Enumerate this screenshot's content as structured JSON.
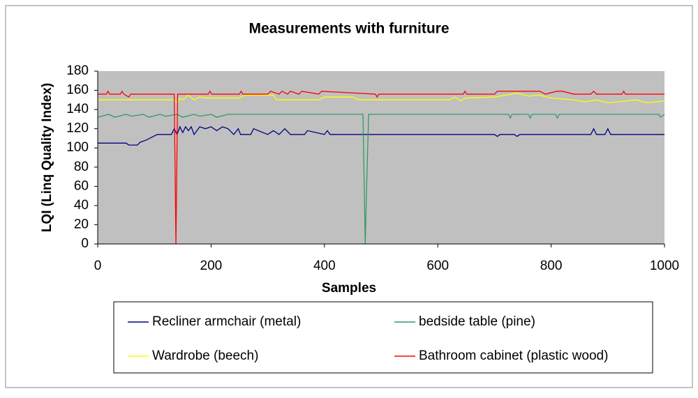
{
  "chart_data": {
    "type": "line",
    "title": "Measurements with furniture",
    "x_label": "Samples",
    "y_label": "LQI (Linq Quality Index)",
    "xlim": [
      0,
      1000
    ],
    "xticks": [
      0,
      200,
      400,
      600,
      800,
      1000
    ],
    "ylim": [
      0,
      180
    ],
    "yticks": [
      0,
      20,
      40,
      60,
      80,
      100,
      120,
      140,
      160,
      180
    ],
    "grid": false,
    "legend": "bottom",
    "plot_background": "#c0c0c0",
    "series": [
      {
        "name": "Recliner armchair (metal)",
        "color": "#000080",
        "x": [
          0,
          50,
          55,
          70,
          75,
          85,
          95,
          105,
          130,
          135,
          140,
          145,
          150,
          155,
          160,
          165,
          170,
          180,
          190,
          200,
          210,
          220,
          230,
          240,
          248,
          252,
          270,
          275,
          300,
          310,
          320,
          330,
          340,
          365,
          370,
          400,
          405,
          410,
          700,
          705,
          710,
          735,
          740,
          745,
          870,
          875,
          880,
          895,
          900,
          905,
          1000
        ],
        "values": [
          105,
          105,
          103,
          103,
          106,
          108,
          111,
          114,
          114,
          120,
          114,
          122,
          116,
          122,
          118,
          122,
          114,
          122,
          120,
          122,
          118,
          122,
          120,
          114,
          120,
          114,
          114,
          120,
          114,
          118,
          114,
          120,
          114,
          114,
          118,
          114,
          118,
          114,
          114,
          112,
          114,
          114,
          112,
          114,
          114,
          120,
          114,
          114,
          120,
          114,
          114
        ]
      },
      {
        "name": "bedside table (pine)",
        "color": "#339966",
        "x": [
          0,
          20,
          30,
          50,
          60,
          80,
          90,
          110,
          120,
          140,
          150,
          170,
          180,
          200,
          210,
          230,
          240,
          468,
          472,
          474,
          478,
          725,
          728,
          731,
          760,
          763,
          766,
          808,
          811,
          814,
          990,
          993,
          1000
        ],
        "values": [
          132,
          135,
          132,
          135,
          133,
          135,
          132,
          135,
          133,
          135,
          132,
          135,
          133,
          135,
          132,
          135,
          135,
          135,
          0,
          50,
          135,
          135,
          131,
          135,
          135,
          131,
          135,
          135,
          131,
          135,
          135,
          132,
          135
        ]
      },
      {
        "name": "Wardrobe (beech)",
        "color": "#ffff00",
        "x": [
          0,
          135,
          140,
          145,
          150,
          160,
          170,
          180,
          190,
          250,
          260,
          310,
          315,
          390,
          400,
          450,
          460,
          620,
          630,
          640,
          650,
          700,
          720,
          740,
          760,
          780,
          800,
          840,
          860,
          880,
          900,
          950,
          970,
          1000
        ],
        "values": [
          150,
          150,
          147,
          152,
          150,
          155,
          150,
          153,
          152,
          152,
          155,
          155,
          150,
          150,
          153,
          153,
          150,
          150,
          153,
          149,
          152,
          153,
          155,
          157,
          154,
          155,
          152,
          150,
          148,
          150,
          147,
          150,
          147,
          149
        ]
      },
      {
        "name": "Bathroom cabinet (plastic wood)",
        "color": "#ff0000",
        "x": [
          0,
          15,
          18,
          21,
          40,
          43,
          46,
          55,
          58,
          61,
          135,
          138,
          141,
          145,
          195,
          198,
          201,
          250,
          253,
          256,
          300,
          305,
          320,
          325,
          335,
          340,
          355,
          360,
          390,
          395,
          490,
          493,
          496,
          645,
          648,
          651,
          700,
          705,
          720,
          760,
          780,
          790,
          810,
          820,
          840,
          870,
          875,
          880,
          925,
          928,
          931,
          1000
        ],
        "values": [
          156,
          156,
          159,
          156,
          156,
          159,
          156,
          153,
          156,
          156,
          156,
          0,
          156,
          156,
          156,
          159,
          156,
          156,
          159,
          156,
          156,
          159,
          156,
          159,
          156,
          159,
          156,
          159,
          156,
          159,
          156,
          153,
          156,
          156,
          159,
          156,
          156,
          159,
          159,
          159,
          159,
          156,
          159,
          159,
          156,
          156,
          159,
          156,
          156,
          159,
          156,
          156
        ]
      }
    ]
  }
}
